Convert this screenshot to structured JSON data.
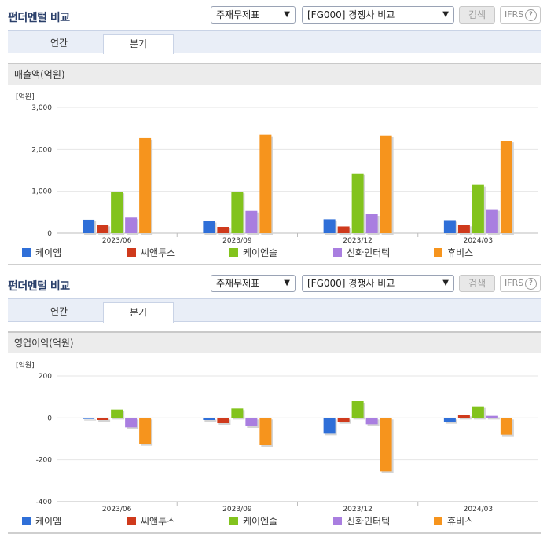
{
  "panels": [
    {
      "title": "펀더멘털 비교",
      "select1": "주재무제표",
      "select2": "[FG000] 경쟁사 비교",
      "search_label": "검색",
      "ifrs_label": "IFRS",
      "tabs": [
        "연간",
        "분기"
      ],
      "active_tab": 1,
      "chart_header": "매출액(억원)"
    },
    {
      "title": "펀더멘털 비교",
      "select1": "주재무제표",
      "select2": "[FG000] 경쟁사 비교",
      "search_label": "검색",
      "ifrs_label": "IFRS",
      "tabs": [
        "연간",
        "분기"
      ],
      "active_tab": 1,
      "chart_header": "영업이익(억원)"
    }
  ],
  "colors": [
    "#2f6fd8",
    "#cf3a1c",
    "#82c31d",
    "#a97ee0",
    "#f6941d"
  ],
  "chart_data": [
    {
      "type": "bar",
      "unit_label": "[억원]",
      "categories": [
        "2023/06",
        "2023/09",
        "2023/12",
        "2024/03"
      ],
      "ylim": [
        0,
        3000
      ],
      "yticks": [
        0,
        1000,
        2000,
        3000
      ],
      "ytick_labels": [
        "0",
        "1,000",
        "2,000",
        "3,000"
      ],
      "grid": true,
      "legend_position": "bottom",
      "series": [
        {
          "name": "케이엠",
          "values": [
            320,
            290,
            330,
            310
          ]
        },
        {
          "name": "씨앤투스",
          "values": [
            200,
            150,
            160,
            200
          ]
        },
        {
          "name": "케이엔솔",
          "values": [
            990,
            990,
            1430,
            1150
          ]
        },
        {
          "name": "신화인터텍",
          "values": [
            370,
            530,
            450,
            570
          ]
        },
        {
          "name": "휴비스",
          "values": [
            2270,
            2350,
            2330,
            2210
          ]
        }
      ]
    },
    {
      "type": "bar",
      "unit_label": "[억원]",
      "categories": [
        "2023/06",
        "2023/09",
        "2023/12",
        "2024/03"
      ],
      "ylim": [
        -400,
        200
      ],
      "yticks": [
        -400,
        -200,
        0,
        200
      ],
      "ytick_labels": [
        "-400",
        "-200",
        "0",
        "200"
      ],
      "grid": true,
      "legend_position": "bottom",
      "series": [
        {
          "name": "케이엠",
          "values": [
            -5,
            -10,
            -75,
            -20
          ]
        },
        {
          "name": "씨앤투스",
          "values": [
            -10,
            -25,
            -20,
            15
          ]
        },
        {
          "name": "케이엔솔",
          "values": [
            40,
            45,
            80,
            55
          ]
        },
        {
          "name": "신화인터텍",
          "values": [
            -45,
            -40,
            -30,
            10
          ]
        },
        {
          "name": "휴비스",
          "values": [
            -125,
            -130,
            -255,
            -80
          ]
        }
      ]
    }
  ]
}
